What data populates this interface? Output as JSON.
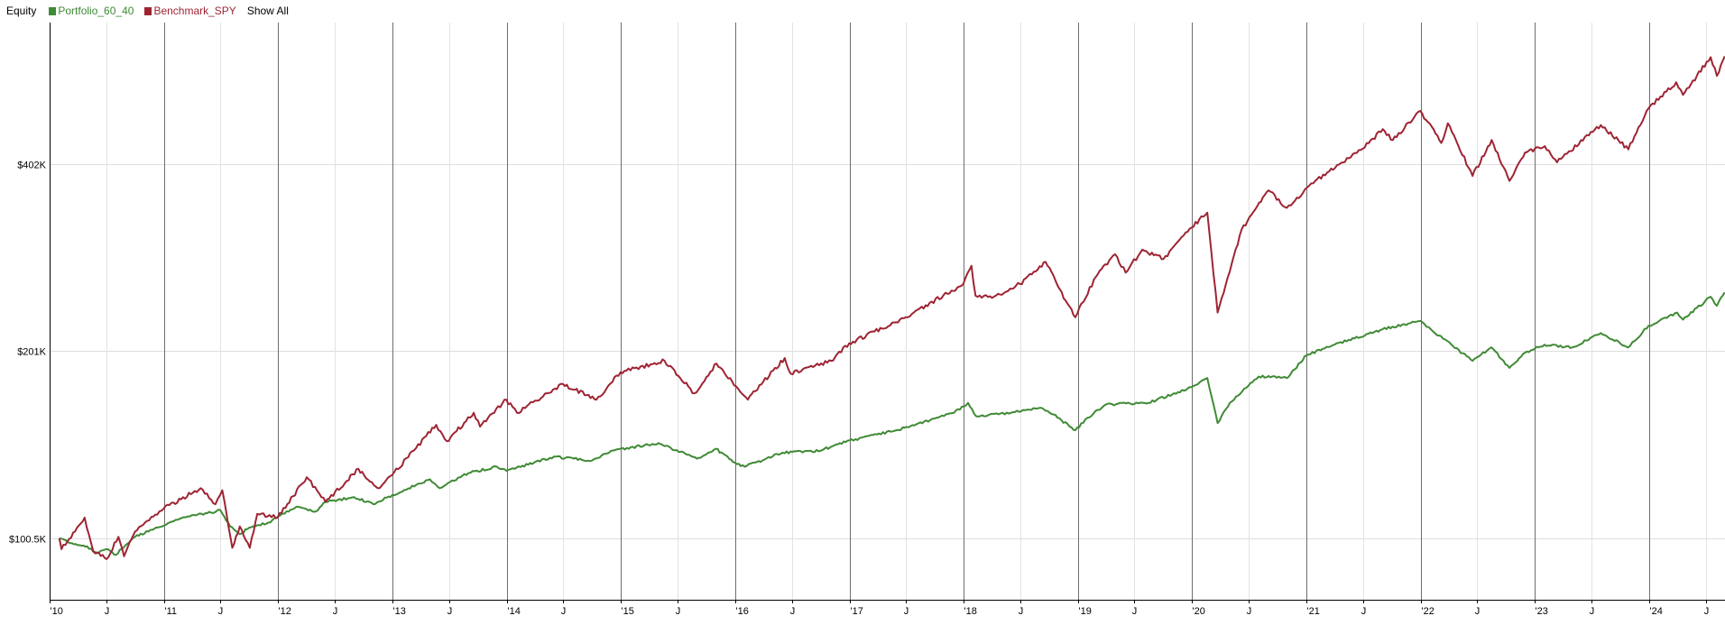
{
  "legend": {
    "title": "Equity",
    "series": [
      {
        "name": "Portfolio_60_40",
        "color": "#3f8a35"
      },
      {
        "name": "Benchmark_SPY",
        "color": "#9e2433"
      }
    ],
    "show_all": "Show All"
  },
  "chart_data": {
    "type": "line",
    "title": "Equity",
    "xlabel": "",
    "ylabel": "",
    "y_scale": "log",
    "xlim": [
      "2010-01-01",
      "2024-08-31"
    ],
    "ylim": [
      80000,
      680000
    ],
    "y_ticks": [
      {
        "value": 100500,
        "label": "$100.5K"
      },
      {
        "value": 201000,
        "label": "$201K"
      },
      {
        "value": 402000,
        "label": "$402K"
      }
    ],
    "x_ticks": [
      {
        "x": "2010-01-01",
        "label": "'10",
        "major": true
      },
      {
        "x": "2010-07-01",
        "label": "J",
        "major": false
      },
      {
        "x": "2011-01-01",
        "label": "'11",
        "major": true
      },
      {
        "x": "2011-07-01",
        "label": "J",
        "major": false
      },
      {
        "x": "2012-01-01",
        "label": "'12",
        "major": true
      },
      {
        "x": "2012-07-01",
        "label": "J",
        "major": false
      },
      {
        "x": "2013-01-01",
        "label": "'13",
        "major": true
      },
      {
        "x": "2013-07-01",
        "label": "J",
        "major": false
      },
      {
        "x": "2014-01-01",
        "label": "'14",
        "major": true
      },
      {
        "x": "2014-07-01",
        "label": "J",
        "major": false
      },
      {
        "x": "2015-01-01",
        "label": "'15",
        "major": true
      },
      {
        "x": "2015-07-01",
        "label": "J",
        "major": false
      },
      {
        "x": "2016-01-01",
        "label": "'16",
        "major": true
      },
      {
        "x": "2016-07-01",
        "label": "J",
        "major": false
      },
      {
        "x": "2017-01-01",
        "label": "'17",
        "major": true
      },
      {
        "x": "2017-07-01",
        "label": "J",
        "major": false
      },
      {
        "x": "2018-01-01",
        "label": "'18",
        "major": true
      },
      {
        "x": "2018-07-01",
        "label": "J",
        "major": false
      },
      {
        "x": "2019-01-01",
        "label": "'19",
        "major": true
      },
      {
        "x": "2019-07-01",
        "label": "J",
        "major": false
      },
      {
        "x": "2020-01-01",
        "label": "'20",
        "major": true
      },
      {
        "x": "2020-07-01",
        "label": "J",
        "major": false
      },
      {
        "x": "2021-01-01",
        "label": "'21",
        "major": true
      },
      {
        "x": "2021-07-01",
        "label": "J",
        "major": false
      },
      {
        "x": "2022-01-01",
        "label": "'22",
        "major": true
      },
      {
        "x": "2022-07-01",
        "label": "J",
        "major": false
      },
      {
        "x": "2023-01-01",
        "label": "'23",
        "major": true
      },
      {
        "x": "2023-07-01",
        "label": "J",
        "major": false
      },
      {
        "x": "2024-01-01",
        "label": "'24",
        "major": true
      },
      {
        "x": "2024-07-01",
        "label": "J",
        "major": false
      }
    ],
    "grid": true,
    "legend_position": "top-left",
    "series": [
      {
        "name": "Portfolio_60_40",
        "color": "#3f8a35",
        "points": [
          [
            "2010-02-01",
            100500
          ],
          [
            "2010-03-01",
            99000
          ],
          [
            "2010-05-01",
            97500
          ],
          [
            "2010-06-01",
            95000
          ],
          [
            "2010-07-01",
            96500
          ],
          [
            "2010-08-01",
            94500
          ],
          [
            "2010-09-01",
            98000
          ],
          [
            "2010-10-01",
            101000
          ],
          [
            "2010-12-01",
            104000
          ],
          [
            "2011-02-01",
            107000
          ],
          [
            "2011-04-01",
            109500
          ],
          [
            "2011-06-01",
            110500
          ],
          [
            "2011-07-01",
            111500
          ],
          [
            "2011-08-01",
            105000
          ],
          [
            "2011-09-01",
            102000
          ],
          [
            "2011-10-01",
            104500
          ],
          [
            "2011-12-01",
            106500
          ],
          [
            "2012-03-01",
            113000
          ],
          [
            "2012-05-01",
            111000
          ],
          [
            "2012-06-01",
            115000
          ],
          [
            "2012-09-01",
            117000
          ],
          [
            "2012-11-01",
            114000
          ],
          [
            "2013-01-01",
            118000
          ],
          [
            "2013-05-01",
            125000
          ],
          [
            "2013-06-01",
            121000
          ],
          [
            "2013-09-01",
            128000
          ],
          [
            "2013-12-01",
            131000
          ],
          [
            "2014-01-01",
            129000
          ],
          [
            "2014-06-01",
            136000
          ],
          [
            "2014-10-01",
            134000
          ],
          [
            "2014-12-01",
            139000
          ],
          [
            "2015-05-01",
            143000
          ],
          [
            "2015-08-01",
            137000
          ],
          [
            "2015-09-01",
            135000
          ],
          [
            "2015-11-01",
            140000
          ],
          [
            "2016-01-01",
            133000
          ],
          [
            "2016-02-01",
            131000
          ],
          [
            "2016-06-01",
            138000
          ],
          [
            "2016-10-01",
            139000
          ],
          [
            "2016-12-01",
            143000
          ],
          [
            "2017-06-01",
            150000
          ],
          [
            "2017-12-01",
            160000
          ],
          [
            "2018-01-15",
            166000
          ],
          [
            "2018-02-10",
            158000
          ],
          [
            "2018-06-01",
            160000
          ],
          [
            "2018-09-01",
            163000
          ],
          [
            "2018-10-15",
            159000
          ],
          [
            "2018-12-24",
            150000
          ],
          [
            "2019-01-31",
            157000
          ],
          [
            "2019-04-01",
            165000
          ],
          [
            "2019-08-15",
            166000
          ],
          [
            "2019-12-31",
            176000
          ],
          [
            "2020-02-19",
            182000
          ],
          [
            "2020-03-23",
            154000
          ],
          [
            "2020-05-01",
            166000
          ],
          [
            "2020-08-01",
            183000
          ],
          [
            "2020-10-30",
            182000
          ],
          [
            "2021-01-01",
            198000
          ],
          [
            "2021-04-01",
            206000
          ],
          [
            "2021-09-01",
            218000
          ],
          [
            "2021-12-31",
            225000
          ],
          [
            "2022-03-01",
            213000
          ],
          [
            "2022-06-16",
            194000
          ],
          [
            "2022-08-15",
            204000
          ],
          [
            "2022-10-12",
            189000
          ],
          [
            "2022-12-01",
            200000
          ],
          [
            "2023-02-01",
            206000
          ],
          [
            "2023-05-01",
            204000
          ],
          [
            "2023-07-31",
            215000
          ],
          [
            "2023-10-27",
            204000
          ],
          [
            "2023-12-31",
            221000
          ],
          [
            "2024-03-31",
            232000
          ],
          [
            "2024-04-19",
            226000
          ],
          [
            "2024-07-16",
            246000
          ],
          [
            "2024-08-05",
            238000
          ],
          [
            "2024-08-30",
            250000
          ]
        ]
      },
      {
        "name": "Benchmark_SPY",
        "color": "#9e2433",
        "points": [
          [
            "2010-02-01",
            100500
          ],
          [
            "2010-02-08",
            96500
          ],
          [
            "2010-04-23",
            108500
          ],
          [
            "2010-05-20",
            96000
          ],
          [
            "2010-07-02",
            93000
          ],
          [
            "2010-08-09",
            101000
          ],
          [
            "2010-08-27",
            94000
          ],
          [
            "2010-10-01",
            103000
          ],
          [
            "2010-12-31",
            112000
          ],
          [
            "2011-04-29",
            121000
          ],
          [
            "2011-06-15",
            114000
          ],
          [
            "2011-07-07",
            120000
          ],
          [
            "2011-08-08",
            97000
          ],
          [
            "2011-09-01",
            105000
          ],
          [
            "2011-10-03",
            97000
          ],
          [
            "2011-10-27",
            110000
          ],
          [
            "2011-12-31",
            108500
          ],
          [
            "2012-04-02",
            126000
          ],
          [
            "2012-06-01",
            115000
          ],
          [
            "2012-09-14",
            130000
          ],
          [
            "2012-11-15",
            121000
          ],
          [
            "2012-12-31",
            127000
          ],
          [
            "2013-05-21",
            153000
          ],
          [
            "2013-06-24",
            144000
          ],
          [
            "2013-09-18",
            160000
          ],
          [
            "2013-10-08",
            152000
          ],
          [
            "2013-12-31",
            168000
          ],
          [
            "2014-02-03",
            160000
          ],
          [
            "2014-06-30",
            178000
          ],
          [
            "2014-10-15",
            168000
          ],
          [
            "2014-12-31",
            186000
          ],
          [
            "2015-05-21",
            194000
          ],
          [
            "2015-08-24",
            172000
          ],
          [
            "2015-11-03",
            192000
          ],
          [
            "2016-02-11",
            168000
          ],
          [
            "2016-06-08",
            196000
          ],
          [
            "2016-06-27",
            185000
          ],
          [
            "2016-11-04",
            194000
          ],
          [
            "2016-12-31",
            207000
          ],
          [
            "2017-06-30",
            228000
          ],
          [
            "2017-12-31",
            258000
          ],
          [
            "2018-01-26",
            276000
          ],
          [
            "2018-02-08",
            247000
          ],
          [
            "2018-04-02",
            245000
          ],
          [
            "2018-06-30",
            258000
          ],
          [
            "2018-09-20",
            280000
          ],
          [
            "2018-10-29",
            256000
          ],
          [
            "2018-12-24",
            228000
          ],
          [
            "2019-02-28",
            265000
          ],
          [
            "2019-04-30",
            288000
          ],
          [
            "2019-06-03",
            269000
          ],
          [
            "2019-07-26",
            293000
          ],
          [
            "2019-10-02",
            283000
          ],
          [
            "2019-12-31",
            318000
          ],
          [
            "2020-02-19",
            336000
          ],
          [
            "2020-03-23",
            232000
          ],
          [
            "2020-06-08",
            316000
          ],
          [
            "2020-09-02",
            365000
          ],
          [
            "2020-10-30",
            342000
          ],
          [
            "2021-01-29",
            378000
          ],
          [
            "2021-06-30",
            426000
          ],
          [
            "2021-09-02",
            458000
          ],
          [
            "2021-10-04",
            440000
          ],
          [
            "2021-12-31",
            490000
          ],
          [
            "2022-03-08",
            435000
          ],
          [
            "2022-03-29",
            468000
          ],
          [
            "2022-06-16",
            385000
          ],
          [
            "2022-08-16",
            440000
          ],
          [
            "2022-10-12",
            378000
          ],
          [
            "2022-12-01",
            420000
          ],
          [
            "2023-02-02",
            430000
          ],
          [
            "2023-03-13",
            405000
          ],
          [
            "2023-07-31",
            465000
          ],
          [
            "2023-10-27",
            425000
          ],
          [
            "2023-12-31",
            495000
          ],
          [
            "2024-03-28",
            545000
          ],
          [
            "2024-04-19",
            520000
          ],
          [
            "2024-07-16",
            598000
          ],
          [
            "2024-08-05",
            558000
          ],
          [
            "2024-08-30",
            600000
          ]
        ]
      }
    ]
  }
}
